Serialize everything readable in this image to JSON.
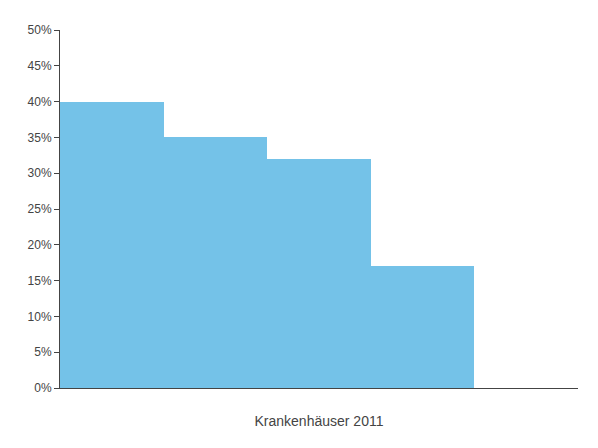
{
  "chart_data": {
    "type": "histogram",
    "bins": [
      0,
      2,
      4,
      6,
      8,
      10
    ],
    "values": [
      0.4,
      0.35,
      0.32,
      0.17,
      0.0
    ],
    "color": "#74C2E8",
    "xlabel": "Krankenhäuser 2011",
    "xlim": [
      0,
      10
    ],
    "ylim": [
      0,
      0.5
    ],
    "yticks": [
      {
        "value": 0.0,
        "label": "0%"
      },
      {
        "value": 0.05,
        "label": "5%"
      },
      {
        "value": 0.1,
        "label": "10%"
      },
      {
        "value": 0.15,
        "label": "15%"
      },
      {
        "value": 0.2,
        "label": "20%"
      },
      {
        "value": 0.25,
        "label": "25%"
      },
      {
        "value": 0.3,
        "label": "30%"
      },
      {
        "value": 0.35,
        "label": "35%"
      },
      {
        "value": 0.4,
        "label": "40%"
      },
      {
        "value": 0.45,
        "label": "45%"
      },
      {
        "value": 0.5,
        "label": "50%"
      }
    ],
    "grid": false,
    "tick_labels": "y"
  }
}
